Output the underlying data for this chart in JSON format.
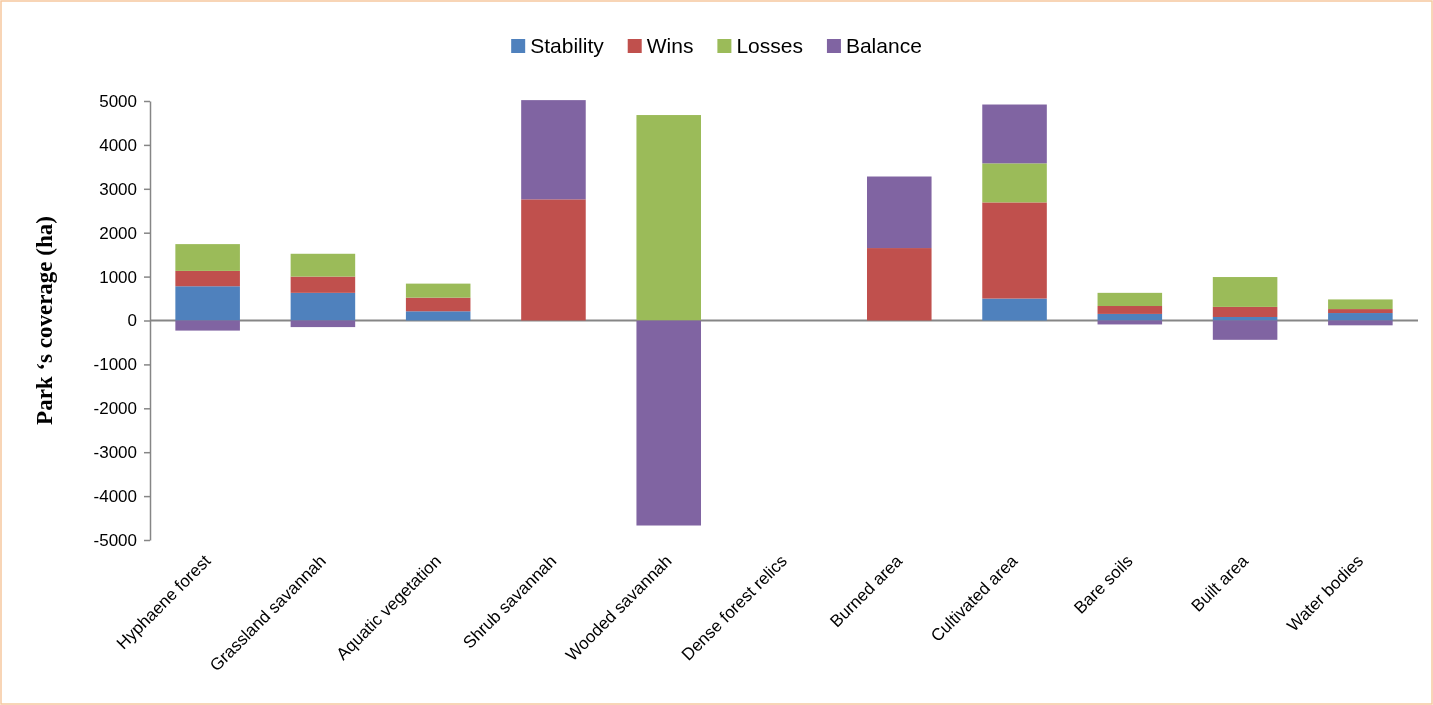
{
  "chart_data": {
    "type": "bar",
    "stacked": true,
    "ylabel": "Park ‘s coverage  (ha)",
    "legend": "top",
    "categories": [
      "Hyphaene forest",
      "Grassland savannah",
      "Aquatic vegetation",
      "Shrub savannah",
      "Wooded savannah",
      "Dense forest relics",
      "Burned area",
      "Cultivated area",
      "Bare soils",
      "Built area",
      "Water bodies"
    ],
    "ylim": [
      -5000,
      5000
    ],
    "yticks": [
      -5000,
      -4000,
      -3000,
      -2000,
      -1000,
      0,
      1000,
      2000,
      3000,
      4000,
      5000
    ],
    "series": [
      {
        "name": "Stability",
        "color": "#4f81bd",
        "values": [
          780,
          630,
          210,
          0,
          0,
          null,
          0,
          500,
          150,
          80,
          170
        ]
      },
      {
        "name": "Wins",
        "color": "#c0504d",
        "values": [
          350,
          370,
          310,
          2760,
          0,
          0,
          1650,
          2190,
          180,
          230,
          90
        ]
      },
      {
        "name": "Losses",
        "color": "#9bbb59",
        "values": [
          610,
          520,
          320,
          0,
          4680,
          0,
          0,
          890,
          300,
          680,
          220
        ]
      },
      {
        "name": "Balance",
        "color": "#8064a2",
        "values": [
          -230,
          -150,
          0,
          2260,
          -4670,
          0,
          1630,
          1340,
          -90,
          -440,
          -110
        ]
      }
    ]
  }
}
